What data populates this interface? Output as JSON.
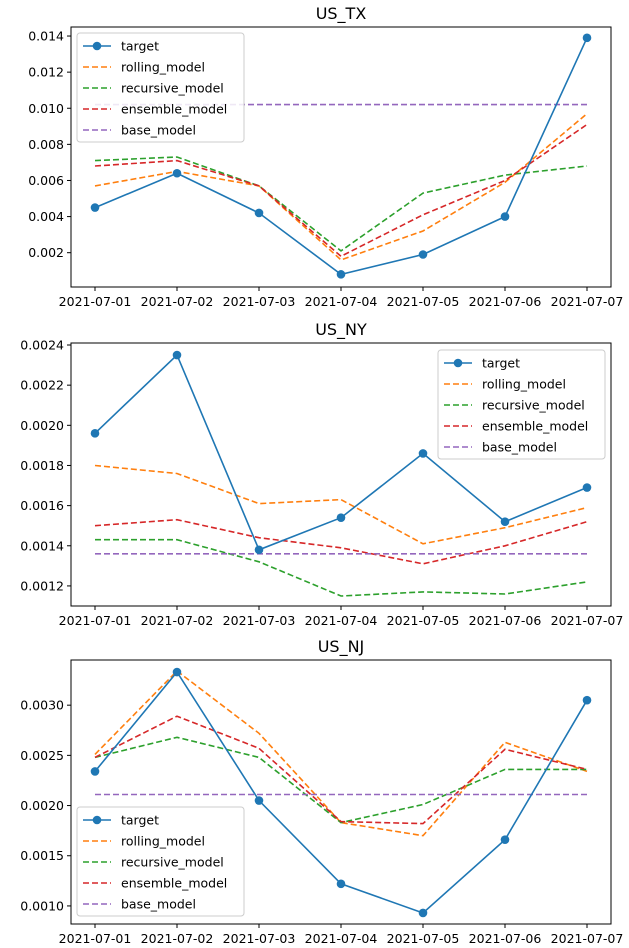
{
  "colors": {
    "target": "#1f77b4",
    "rolling_model": "#ff7f0e",
    "recursive_model": "#2ca02c",
    "ensemble_model": "#d62728",
    "base_model": "#9467bd"
  },
  "chart_data": [
    {
      "type": "line",
      "title": "US_TX",
      "categories": [
        "2021-07-01",
        "2021-07-02",
        "2021-07-03",
        "2021-07-04",
        "2021-07-05",
        "2021-07-06",
        "2021-07-07"
      ],
      "ylim": [
        0.0001,
        0.0145
      ],
      "yticks": [
        "0.002",
        "0.004",
        "0.006",
        "0.008",
        "0.010",
        "0.012",
        "0.014"
      ],
      "legend": "upper-left",
      "grid": false,
      "series": [
        {
          "name": "target",
          "values": [
            0.0045,
            0.0064,
            0.0042,
            0.0008,
            0.0019,
            0.004,
            0.0139
          ]
        },
        {
          "name": "rolling_model",
          "values": [
            0.0057,
            0.0065,
            0.0057,
            0.0016,
            0.0032,
            0.0059,
            0.0097
          ]
        },
        {
          "name": "recursive_model",
          "values": [
            0.0071,
            0.0073,
            0.0057,
            0.0021,
            0.0053,
            0.0063,
            0.0068
          ]
        },
        {
          "name": "ensemble_model",
          "values": [
            0.0068,
            0.0071,
            0.0057,
            0.0018,
            0.0041,
            0.006,
            0.0091
          ]
        },
        {
          "name": "base_model",
          "values": [
            0.0102,
            0.0102,
            0.0102,
            0.0102,
            0.0102,
            0.0102,
            0.0102
          ]
        }
      ]
    },
    {
      "type": "line",
      "title": "US_NY",
      "categories": [
        "2021-07-01",
        "2021-07-02",
        "2021-07-03",
        "2021-07-04",
        "2021-07-05",
        "2021-07-06",
        "2021-07-07"
      ],
      "ylim": [
        0.0011,
        0.00241
      ],
      "yticks": [
        "0.0012",
        "0.0014",
        "0.0016",
        "0.0018",
        "0.0020",
        "0.0022",
        "0.0024"
      ],
      "legend": "upper-right",
      "grid": false,
      "series": [
        {
          "name": "target",
          "values": [
            0.00196,
            0.00235,
            0.00138,
            0.00154,
            0.00186,
            0.00152,
            0.00169
          ]
        },
        {
          "name": "rolling_model",
          "values": [
            0.0018,
            0.00176,
            0.00161,
            0.00163,
            0.00141,
            0.00149,
            0.00159
          ]
        },
        {
          "name": "recursive_model",
          "values": [
            0.00143,
            0.00143,
            0.00132,
            0.00115,
            0.00117,
            0.00116,
            0.00122
          ]
        },
        {
          "name": "ensemble_model",
          "values": [
            0.0015,
            0.00153,
            0.00144,
            0.00139,
            0.00131,
            0.0014,
            0.00152
          ]
        },
        {
          "name": "base_model",
          "values": [
            0.00136,
            0.00136,
            0.00136,
            0.00136,
            0.00136,
            0.00136,
            0.00136
          ]
        }
      ]
    },
    {
      "type": "line",
      "title": "US_NJ",
      "categories": [
        "2021-07-01",
        "2021-07-02",
        "2021-07-03",
        "2021-07-04",
        "2021-07-05",
        "2021-07-06",
        "2021-07-07"
      ],
      "ylim": [
        0.00082,
        0.00345
      ],
      "yticks": [
        "0.0010",
        "0.0015",
        "0.0020",
        "0.0025",
        "0.0030"
      ],
      "legend": "lower-left",
      "grid": false,
      "series": [
        {
          "name": "target",
          "values": [
            0.00234,
            0.00333,
            0.00205,
            0.00122,
            0.00093,
            0.00166,
            0.00305
          ]
        },
        {
          "name": "rolling_model",
          "values": [
            0.00251,
            0.00334,
            0.00272,
            0.00183,
            0.0017,
            0.00263,
            0.00234
          ]
        },
        {
          "name": "recursive_model",
          "values": [
            0.00248,
            0.00268,
            0.00248,
            0.00183,
            0.00201,
            0.00236,
            0.00236
          ]
        },
        {
          "name": "ensemble_model",
          "values": [
            0.00248,
            0.00289,
            0.00257,
            0.00184,
            0.00182,
            0.00256,
            0.00236
          ]
        },
        {
          "name": "base_model",
          "values": [
            0.00211,
            0.00211,
            0.00211,
            0.00211,
            0.00211,
            0.00211,
            0.00211
          ]
        }
      ]
    }
  ]
}
